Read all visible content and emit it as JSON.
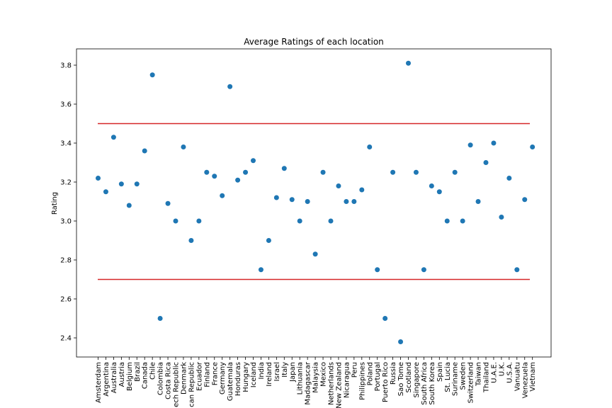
{
  "chart_data": {
    "type": "scatter",
    "title": "Average Ratings of each location",
    "xlabel": "",
    "ylabel": "Rating",
    "ylim": [
      2.3,
      3.85
    ],
    "yticks": [
      2.4,
      2.6,
      2.8,
      3.0,
      3.2,
      3.4,
      3.6,
      3.8
    ],
    "ytick_labels": [
      "2.4",
      "2.6",
      "2.8",
      "3.0",
      "3.2",
      "3.4",
      "3.6",
      "3.8"
    ],
    "grid": false,
    "marker_color": "#1f77b4",
    "reference_line_color": "#d62728",
    "reference_lines": [
      3.5,
      2.7
    ],
    "categories": [
      "Amsterdam",
      "Argentina",
      "Australia",
      "Austria",
      "Belgium",
      "Brazil",
      "Canada",
      "Chile",
      "Colombia",
      "Costa Rica",
      "ech Republic",
      "Denmark",
      "can Republic",
      "Ecuador",
      "Finland",
      "France",
      "Germany",
      "Guatemala",
      "Honduras",
      "Hungary",
      "Iceland",
      "India",
      "Ireland",
      "Israel",
      "Italy",
      "Japan",
      "Lithuania",
      "Madagascar",
      "Malaysia",
      "Mexico",
      "Netherlands",
      "New Zealand",
      "Nicaragua",
      "Peru",
      "Philippines",
      "Poland",
      "Portugal",
      "Puerto Rico",
      "Russia",
      "Sao Tome",
      "Scotland",
      "Singapore",
      "South Africa",
      "South Korea",
      "Spain",
      "St. Lucia",
      "Suriname",
      "Sweden",
      "Switzerland",
      "Taiwan",
      "Thailand",
      "U.A.E.",
      "U.K.",
      "U.S.A.",
      "Vanuatu",
      "Venezuela",
      "Vietnam"
    ],
    "values": [
      3.22,
      3.15,
      3.43,
      3.19,
      3.08,
      3.19,
      3.36,
      3.75,
      2.5,
      3.09,
      3.0,
      3.38,
      2.9,
      3.0,
      3.25,
      3.23,
      3.13,
      3.69,
      3.21,
      3.25,
      3.31,
      2.75,
      2.9,
      3.12,
      3.27,
      3.11,
      3.0,
      3.1,
      2.83,
      3.25,
      3.0,
      3.18,
      3.1,
      3.1,
      3.16,
      3.38,
      2.75,
      2.5,
      3.25,
      2.38,
      3.81,
      3.25,
      2.75,
      3.18,
      3.15,
      3.0,
      3.25,
      3.0,
      3.39,
      3.1,
      3.3,
      3.4,
      3.02,
      3.22,
      2.75,
      3.11,
      3.38
    ]
  }
}
